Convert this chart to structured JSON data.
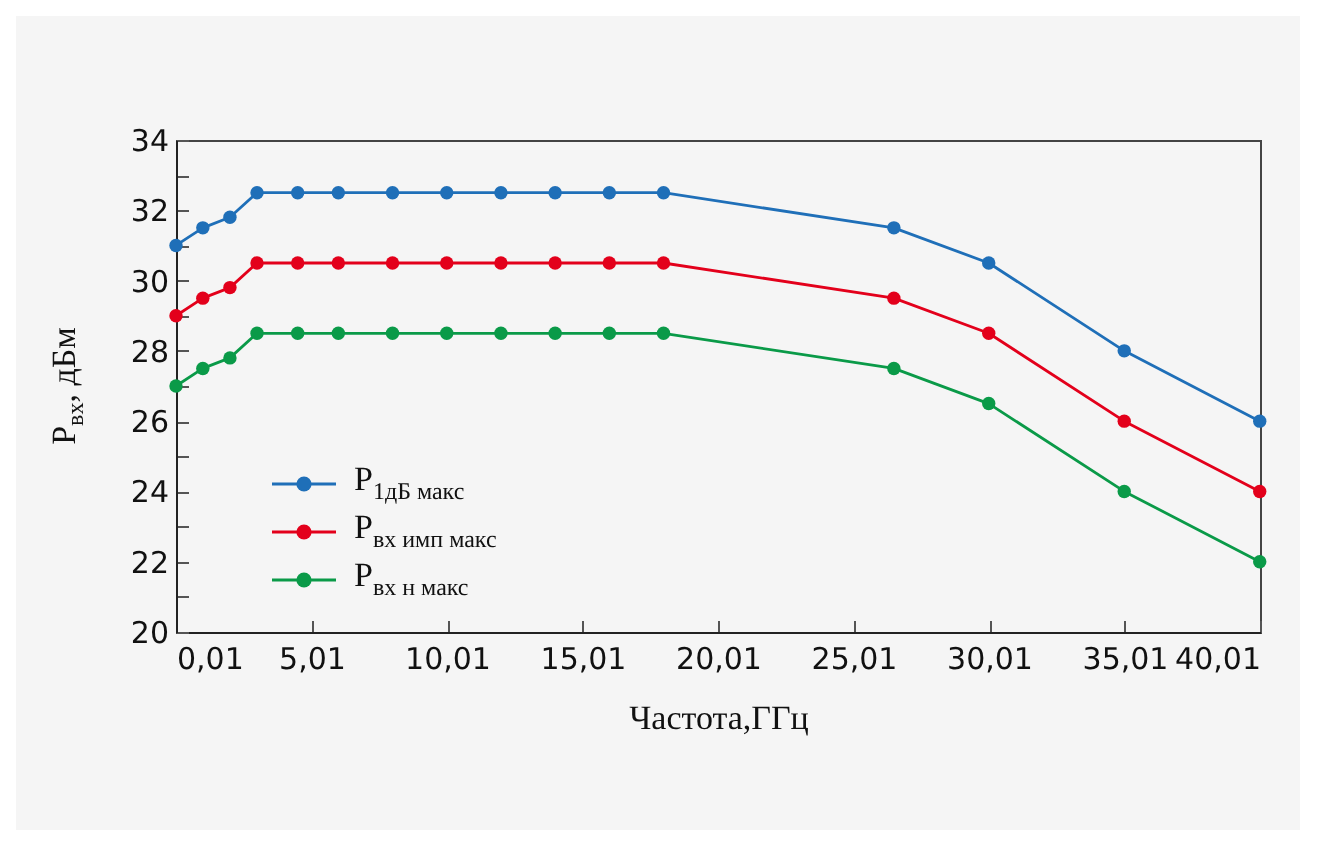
{
  "chart_data": {
    "type": "line",
    "xlabel": "Частота,ГГц",
    "ylabel": "P$_{вх}$, дБм",
    "x": [
      0.01,
      1,
      2,
      3,
      4.5,
      6,
      8,
      10,
      12,
      14,
      16,
      18,
      26.5,
      30,
      35,
      40
    ],
    "series": [
      {
        "name": "P$_{1дБ макс}$",
        "color": "#1f6fb8",
        "values": [
          31,
          31.5,
          31.8,
          32.5,
          32.5,
          32.5,
          32.5,
          32.5,
          32.5,
          32.5,
          32.5,
          32.5,
          31.5,
          30.5,
          28,
          26
        ]
      },
      {
        "name": "P$_{вх имп макс}$",
        "color": "#e3001b",
        "values": [
          29,
          29.5,
          29.8,
          30.5,
          30.5,
          30.5,
          30.5,
          30.5,
          30.5,
          30.5,
          30.5,
          30.5,
          29.5,
          28.5,
          26,
          24
        ]
      },
      {
        "name": "P$_{вх н макс}$",
        "color": "#0a9a48",
        "values": [
          27,
          27.5,
          27.8,
          28.5,
          28.5,
          28.5,
          28.5,
          28.5,
          28.5,
          28.5,
          28.5,
          28.5,
          27.5,
          26.5,
          24,
          22
        ]
      }
    ],
    "xlim": [
      0.01,
      40.01
    ],
    "xticks": [
      {
        "value": 0.01,
        "label": "0,01"
      },
      {
        "value": 5.01,
        "label": "5,01"
      },
      {
        "value": 10.01,
        "label": "10,01"
      },
      {
        "value": 15.01,
        "label": "15,01"
      },
      {
        "value": 20.01,
        "label": "20,01"
      },
      {
        "value": 25.01,
        "label": "25,01"
      },
      {
        "value": 30.01,
        "label": "30,01"
      },
      {
        "value": 35.01,
        "label": "35,01"
      },
      {
        "value": 40.01,
        "label": "40,01"
      }
    ],
    "ylim": [
      20,
      34
    ],
    "yticks": [
      20,
      {
        "value": 21,
        "label": null
      },
      22,
      {
        "value": 23,
        "label": null
      },
      24,
      {
        "value": 25,
        "label": null
      },
      26,
      {
        "value": 27,
        "label": null
      },
      28,
      {
        "value": 29,
        "label": null
      },
      30,
      {
        "value": 31,
        "label": null
      },
      32,
      {
        "value": 33,
        "label": null
      },
      34
    ],
    "grid": false,
    "legend": "bottom left",
    "marker": "circle",
    "line_style": "solid"
  }
}
